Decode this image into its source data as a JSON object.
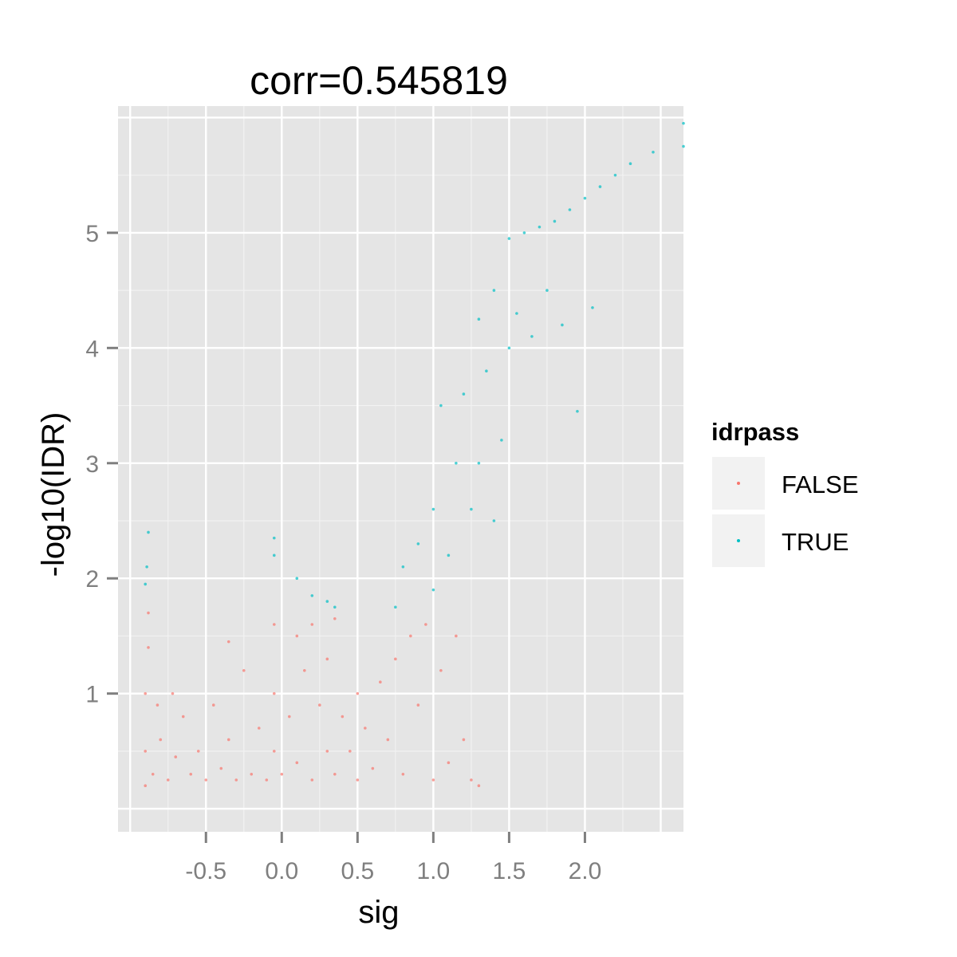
{
  "chart_data": {
    "type": "scatter",
    "title": "corr=0.545819",
    "xlabel": "sig",
    "ylabel": "-log10(IDR)",
    "xlim": [
      -1.08,
      2.65
    ],
    "ylim": [
      -0.2,
      6.1
    ],
    "x_ticks": [
      -0.5,
      0.0,
      0.5,
      1.0,
      1.5,
      2.0
    ],
    "x_tick_labels": [
      "-0.5",
      "0.0",
      "0.5",
      "1.0",
      "1.5",
      "2.0"
    ],
    "y_ticks": [
      1,
      2,
      3,
      4,
      5
    ],
    "y_tick_labels": [
      "1",
      "2",
      "3",
      "4",
      "5"
    ],
    "grid": true,
    "legend": {
      "title": "idrpass",
      "position": "right",
      "entries": [
        {
          "label": "FALSE",
          "color": "#F8766D"
        },
        {
          "label": "TRUE",
          "color": "#00BFC4"
        }
      ]
    },
    "series": [
      {
        "name": "FALSE",
        "color": "#F8766D",
        "points": [
          [
            -0.9,
            0.2
          ],
          [
            -0.9,
            0.5
          ],
          [
            -0.9,
            1.0
          ],
          [
            -0.88,
            1.4
          ],
          [
            -0.88,
            1.7
          ],
          [
            -0.85,
            0.3
          ],
          [
            -0.82,
            0.9
          ],
          [
            -0.8,
            0.6
          ],
          [
            -0.75,
            0.25
          ],
          [
            -0.72,
            1.0
          ],
          [
            -0.7,
            0.45
          ],
          [
            -0.65,
            0.8
          ],
          [
            -0.6,
            0.3
          ],
          [
            -0.55,
            0.5
          ],
          [
            -0.5,
            0.25
          ],
          [
            -0.45,
            0.9
          ],
          [
            -0.4,
            0.35
          ],
          [
            -0.35,
            1.45
          ],
          [
            -0.35,
            0.6
          ],
          [
            -0.3,
            0.25
          ],
          [
            -0.25,
            1.2
          ],
          [
            -0.2,
            0.3
          ],
          [
            -0.15,
            0.7
          ],
          [
            -0.1,
            0.25
          ],
          [
            -0.05,
            1.6
          ],
          [
            -0.05,
            1.0
          ],
          [
            -0.05,
            0.5
          ],
          [
            0.0,
            0.3
          ],
          [
            0.05,
            0.8
          ],
          [
            0.1,
            1.5
          ],
          [
            0.1,
            0.4
          ],
          [
            0.15,
            1.2
          ],
          [
            0.2,
            0.25
          ],
          [
            0.2,
            1.6
          ],
          [
            0.25,
            0.9
          ],
          [
            0.3,
            1.3
          ],
          [
            0.3,
            0.5
          ],
          [
            0.35,
            1.65
          ],
          [
            0.35,
            0.3
          ],
          [
            0.4,
            0.8
          ],
          [
            0.45,
            0.5
          ],
          [
            0.5,
            0.25
          ],
          [
            0.5,
            1.0
          ],
          [
            0.55,
            0.7
          ],
          [
            0.6,
            0.35
          ],
          [
            0.65,
            1.1
          ],
          [
            0.7,
            0.6
          ],
          [
            0.75,
            1.3
          ],
          [
            0.8,
            0.3
          ],
          [
            0.85,
            1.5
          ],
          [
            0.9,
            0.9
          ],
          [
            0.95,
            1.6
          ],
          [
            1.0,
            0.25
          ],
          [
            1.05,
            1.2
          ],
          [
            1.1,
            0.4
          ],
          [
            1.15,
            1.5
          ],
          [
            1.2,
            0.6
          ],
          [
            1.25,
            0.25
          ],
          [
            1.3,
            0.2
          ]
        ]
      },
      {
        "name": "TRUE",
        "color": "#00BFC4",
        "points": [
          [
            -0.9,
            1.95
          ],
          [
            -0.89,
            2.1
          ],
          [
            -0.88,
            2.4
          ],
          [
            -0.05,
            2.2
          ],
          [
            -0.05,
            2.35
          ],
          [
            0.1,
            2.0
          ],
          [
            0.2,
            1.85
          ],
          [
            0.3,
            1.8
          ],
          [
            0.35,
            1.75
          ],
          [
            0.75,
            1.75
          ],
          [
            0.8,
            2.1
          ],
          [
            0.9,
            2.3
          ],
          [
            1.0,
            1.9
          ],
          [
            1.0,
            2.6
          ],
          [
            1.05,
            3.5
          ],
          [
            1.1,
            2.2
          ],
          [
            1.15,
            3.0
          ],
          [
            1.2,
            3.6
          ],
          [
            1.25,
            2.6
          ],
          [
            1.3,
            4.25
          ],
          [
            1.3,
            3.0
          ],
          [
            1.35,
            3.8
          ],
          [
            1.4,
            2.5
          ],
          [
            1.4,
            4.5
          ],
          [
            1.45,
            3.2
          ],
          [
            1.5,
            4.0
          ],
          [
            1.5,
            4.95
          ],
          [
            1.55,
            4.3
          ],
          [
            1.6,
            5.0
          ],
          [
            1.65,
            4.1
          ],
          [
            1.7,
            5.05
          ],
          [
            1.75,
            4.5
          ],
          [
            1.8,
            5.1
          ],
          [
            1.85,
            4.2
          ],
          [
            1.9,
            5.2
          ],
          [
            1.95,
            3.45
          ],
          [
            2.0,
            5.3
          ],
          [
            2.05,
            4.35
          ],
          [
            2.1,
            5.4
          ],
          [
            2.2,
            5.5
          ],
          [
            2.3,
            5.6
          ],
          [
            2.45,
            5.7
          ],
          [
            2.65,
            5.75
          ],
          [
            2.65,
            5.95
          ]
        ]
      }
    ]
  }
}
